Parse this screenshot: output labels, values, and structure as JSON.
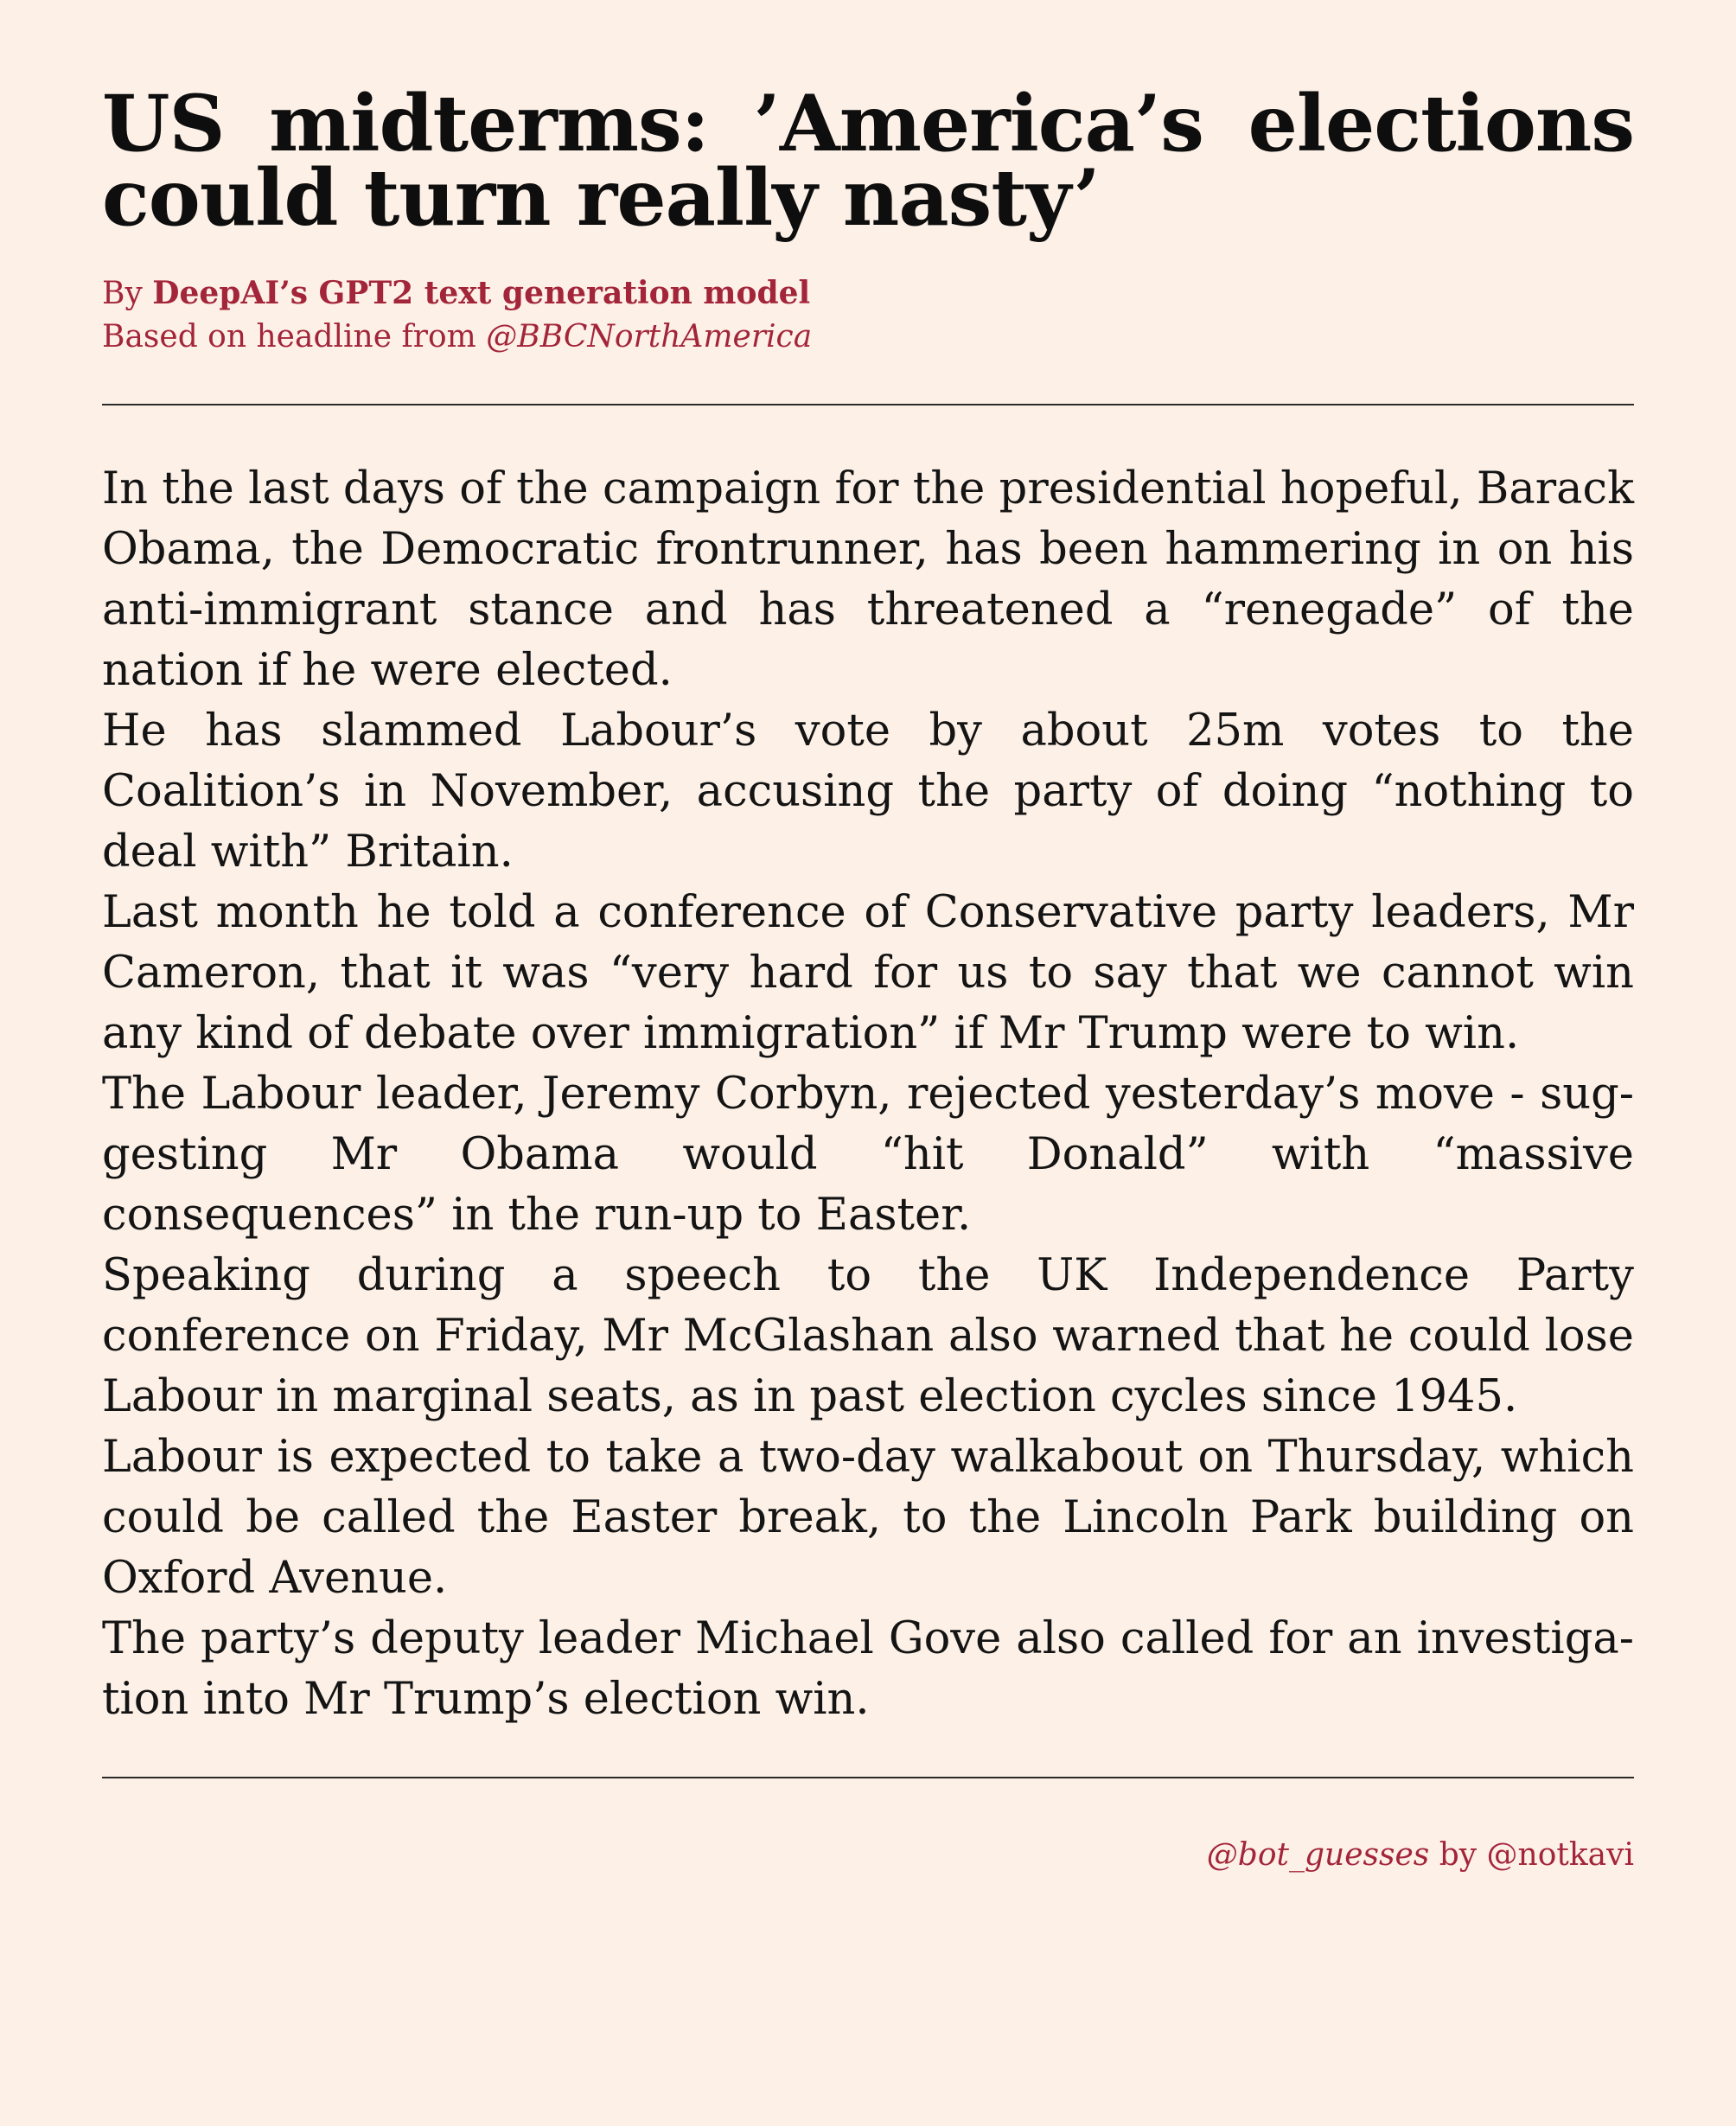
{
  "headline": "US midterms: ’America’s elections could turn really nasty’",
  "byline": {
    "prefix": "By ",
    "author": "DeepAI’s GPT2 text generation model",
    "source_prefix": "Based on headline from ",
    "source_handle": "@BBCNorthAmerica"
  },
  "body": {
    "paragraphs": [
      "In the last days of the campaign for the presidential hopeful, Barack Obama, the Democratic frontrunner, has been hammering in on his anti-immigrant stance and has threatened a “renegade” of the nation if he were elected.",
      "He has slammed Labour’s vote by about 25m votes to the Coalition’s in November, accusing the party of doing “nothing to deal with” Britain.",
      "Last month he told a conference of Conservative party leaders, Mr Cameron, that it was “very hard for us to say that we cannot win any kind of debate over immigration” if Mr Trump were to win.",
      "The Labour leader, Jeremy Corbyn, rejected yesterday’s move - sug­gesting Mr Obama would “hit Donald” with “massive consequences” in the run-up to Easter.",
      "Speaking during a speech to the UK Independence Party conference on Friday, Mr McGlashan also warned that he could lose Labour in marginal seats, as in past election cycles since 1945.",
      "Labour is expected to take a two-day walkabout on Thursday, which could be called the Easter break, to the Lincoln Park building on Oxford Avenue.",
      "The party’s deputy leader Michael Gove also called for an investiga­tion into Mr Trump’s election win."
    ]
  },
  "footer": {
    "bot_handle": "@bot_guesses",
    "by": " by ",
    "author_handle": "@notkavi"
  },
  "colors": {
    "background": "#fdf1e7",
    "accent": "#a3253a",
    "text": "#141414"
  }
}
